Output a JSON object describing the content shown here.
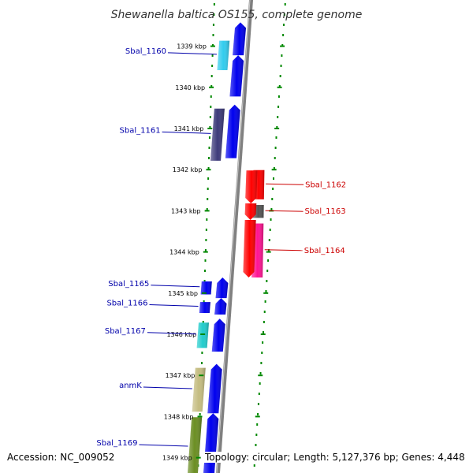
{
  "title": "Shewanella baltica OS155, complete genome",
  "footer": {
    "accession": "Accession: NC_009052",
    "topology": "Topology: circular; Length: 5,127,376 bp; Genes: 4,448"
  },
  "ticks": [
    {
      "label": "1339 kbp",
      "kbp": 1339
    },
    {
      "label": "1340 kbp",
      "kbp": 1340
    },
    {
      "label": "1341 kbp",
      "kbp": 1341
    },
    {
      "label": "1342 kbp",
      "kbp": 1342
    },
    {
      "label": "1343 kbp",
      "kbp": 1343
    },
    {
      "label": "1344 kbp",
      "kbp": 1344
    },
    {
      "label": "1345 kbp",
      "kbp": 1345
    },
    {
      "label": "1346 kbp",
      "kbp": 1346
    },
    {
      "label": "1347 kbp",
      "kbp": 1347
    },
    {
      "label": "1348 kbp",
      "kbp": 1348
    },
    {
      "label": "1349 kbp",
      "kbp": 1349
    }
  ],
  "colors": {
    "forward": "#0000ee",
    "reverse": "#ff0000",
    "backbone": "#808080",
    "dots": "#008800",
    "forward_label": "#0000aa",
    "reverse_label": "#cc0000"
  },
  "genes": [
    {
      "name": "",
      "strand": "+",
      "start": 1338.9,
      "end": 1339.7,
      "cog_color": "#0000ee"
    },
    {
      "name": "",
      "strand": "+",
      "start": 1339.7,
      "end": 1340.7,
      "cog_color": "#0000ee"
    },
    {
      "name": "",
      "strand": "+",
      "start": 1340.9,
      "end": 1342.2,
      "cog_color": "#0000ee"
    },
    {
      "name": "",
      "strand": "-",
      "start": 1342.5,
      "end": 1343.3,
      "cog_color": "#ff0000"
    },
    {
      "name": "",
      "strand": "-",
      "start": 1343.3,
      "end": 1343.7,
      "cog_color": "#ff0000"
    },
    {
      "name": "",
      "strand": "-",
      "start": 1343.7,
      "end": 1345.1,
      "cog_color": "#ff0000"
    },
    {
      "name": "",
      "strand": "+",
      "start": 1345.1,
      "end": 1345.6,
      "cog_color": "#0000ee"
    },
    {
      "name": "",
      "strand": "+",
      "start": 1345.6,
      "end": 1346.0,
      "cog_color": "#0000ee"
    },
    {
      "name": "",
      "strand": "+",
      "start": 1346.1,
      "end": 1346.9,
      "cog_color": "#0000ee"
    },
    {
      "name": "",
      "strand": "+",
      "start": 1347.2,
      "end": 1348.4,
      "cog_color": "#0000ee"
    },
    {
      "name": "",
      "strand": "+",
      "start": 1348.4,
      "end": 1349.9,
      "cog_color": "#0000ee"
    }
  ],
  "labeled_genes": [
    {
      "name": "Sbal_1160",
      "strand": "+",
      "start": 1339.25,
      "end": 1340.1,
      "cog_color": "#33ccee"
    },
    {
      "name": "Sbal_1161",
      "strand": "+",
      "start": 1340.9,
      "end": 1342.3,
      "cog_color": "#3d3a7a"
    },
    {
      "name": "Sbal_1162",
      "strand": "-",
      "start": 1342.45,
      "end": 1343.2,
      "cog_color": "#ff0000"
    },
    {
      "name": "Sbal_1163",
      "strand": "-",
      "start": 1343.3,
      "end": 1343.65,
      "cog_color": "#555555"
    },
    {
      "name": "Sbal_1164",
      "strand": "-",
      "start": 1343.75,
      "end": 1345.1,
      "cog_color": "#ff1493"
    },
    {
      "name": "Sbal_1165",
      "strand": "+",
      "start": 1345.1,
      "end": 1345.55,
      "cog_color": "#0000ee"
    },
    {
      "name": "Sbal_1166",
      "strand": "+",
      "start": 1345.6,
      "end": 1346.0,
      "cog_color": "#0000ee"
    },
    {
      "name": "Sbal_1167",
      "strand": "+",
      "start": 1346.1,
      "end": 1346.85,
      "cog_color": "#22cccc"
    },
    {
      "name": "anmK",
      "strand": "+",
      "start": 1347.2,
      "end": 1348.4,
      "cog_color": "#c4bc80"
    },
    {
      "name": "Sbal_1169",
      "strand": "+",
      "start": 1348.4,
      "end": 1350.0,
      "cog_color": "#6b8e23"
    }
  ]
}
